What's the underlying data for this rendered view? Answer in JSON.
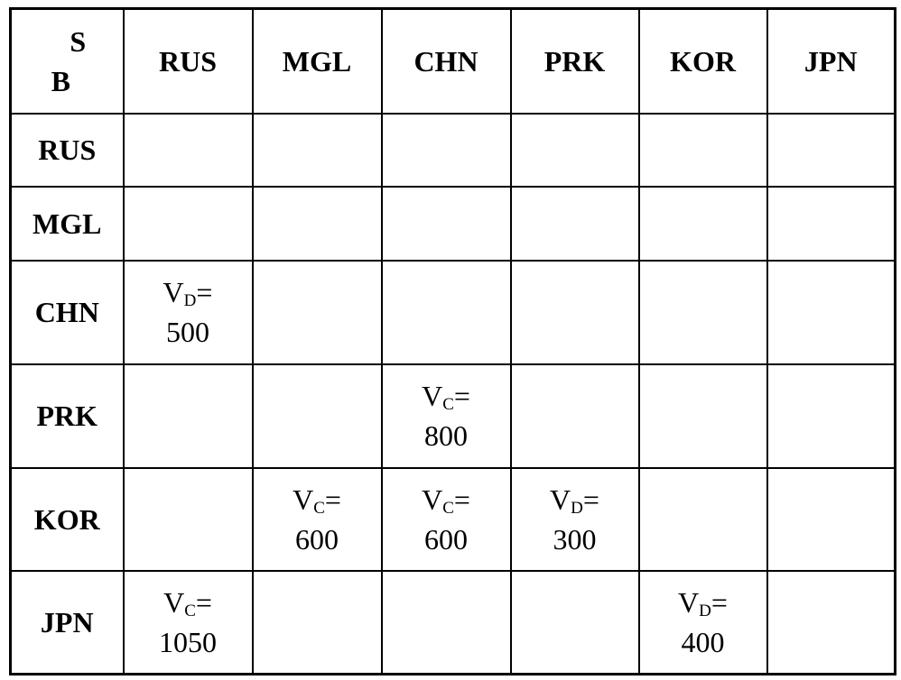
{
  "table": {
    "corner": {
      "top": "S",
      "bottom": "B"
    },
    "columns": [
      "RUS",
      "MGL",
      "CHN",
      "PRK",
      "KOR",
      "JPN"
    ],
    "rows": [
      {
        "label": "RUS",
        "cells": [
          null,
          null,
          null,
          null,
          null,
          null
        ]
      },
      {
        "label": "MGL",
        "cells": [
          null,
          null,
          null,
          null,
          null,
          null
        ]
      },
      {
        "label": "CHN",
        "cells": [
          {
            "v": "V",
            "sub": "D",
            "eq": "=",
            "n": "500"
          },
          null,
          null,
          null,
          null,
          null
        ]
      },
      {
        "label": "PRK",
        "cells": [
          null,
          null,
          {
            "v": "V",
            "sub": "C",
            "eq": "=",
            "n": "800"
          },
          null,
          null,
          null
        ]
      },
      {
        "label": "KOR",
        "cells": [
          null,
          {
            "v": "V",
            "sub": "C",
            "eq": "=",
            "n": "600"
          },
          {
            "v": "V",
            "sub": "C",
            "eq": "=",
            "n": "600"
          },
          {
            "v": "V",
            "sub": "D",
            "eq": "=",
            "n": "300"
          },
          null,
          null
        ]
      },
      {
        "label": "JPN",
        "cells": [
          {
            "v": "V",
            "sub": "C",
            "eq": "=",
            "n": "1050"
          },
          null,
          null,
          null,
          {
            "v": "V",
            "sub": "D",
            "eq": "=",
            "n": "400"
          },
          null
        ]
      }
    ]
  }
}
